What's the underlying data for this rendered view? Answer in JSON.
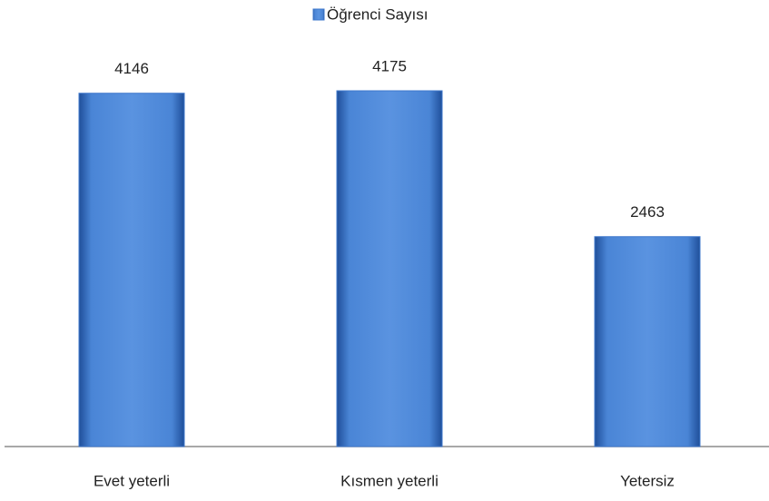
{
  "chart_data": {
    "type": "bar",
    "categories": [
      "Evet yeterli",
      "Kısmen yeterli",
      "Yetersiz"
    ],
    "series": [
      {
        "name": "Öğrenci Sayısı",
        "color": "#3f78cc",
        "values": [
          4146,
          4175,
          2463
        ]
      }
    ]
  }
}
